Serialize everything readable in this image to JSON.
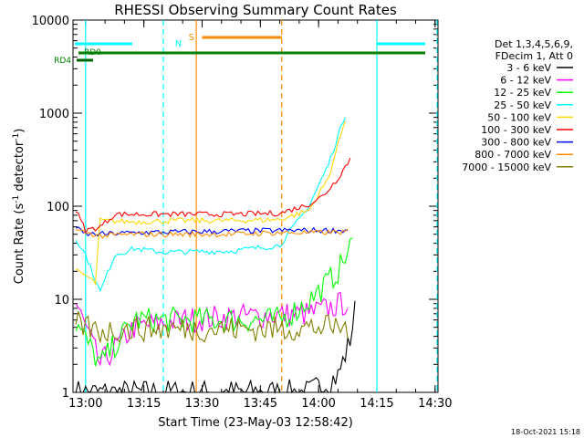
{
  "chart_data": {
    "type": "line",
    "title": "RHESSI Observing Summary Count Rates",
    "xlabel": "Start Time (23-May-03 12:58:42)",
    "ylabel_main": "Count Rate (s",
    "ylabel_sup1": "-1",
    "ylabel_mid": " detector",
    "ylabel_sup2": "-1",
    "ylabel_end": ")",
    "ylog": true,
    "ylim": [
      1,
      10000
    ],
    "xlim_minutes": [
      -1.3,
      36.3
    ],
    "x_ticks": [
      {
        "label": "13:00",
        "m": 0
      },
      {
        "label": "13:15",
        "m": 15
      },
      {
        "label": "13:30",
        "m": 30
      },
      {
        "label": "13:45",
        "m": 45
      },
      {
        "label": "14:00",
        "m": 60
      },
      {
        "label": "14:15",
        "m": 75
      },
      {
        "label": "14:30",
        "m": 90
      }
    ],
    "y_ticks": [
      {
        "label": "1",
        "v": 1
      },
      {
        "label": "10",
        "v": 10
      },
      {
        "label": "100",
        "v": 100
      },
      {
        "label": "1000",
        "v": 1000
      },
      {
        "label": "10000",
        "v": 10000
      }
    ],
    "legend_header": [
      "Det 1,3,4,5,6,9,",
      "FDecim 1, Att 0"
    ],
    "series": [
      {
        "name": "3 - 6 keV",
        "color": "#000000",
        "points": [
          [
            -1,
            1
          ],
          [
            23,
            1
          ],
          [
            26,
            1.5
          ],
          [
            27.2,
            3.5
          ],
          [
            27.8,
            8
          ]
        ],
        "points2": [
          [
            52.5,
            1.4
          ],
          [
            57,
            2
          ],
          [
            62,
            1.5
          ],
          [
            68,
            2
          ],
          [
            75,
            2
          ],
          [
            80,
            1.5
          ],
          [
            84,
            1.2
          ],
          [
            90,
            1
          ]
        ]
      },
      {
        "name": "6 - 12 keV",
        "color": "#ff00ff",
        "points": [
          [
            -1,
            9
          ],
          [
            1.5,
            2
          ],
          [
            5,
            5
          ],
          [
            10,
            6
          ],
          [
            15,
            6.5
          ],
          [
            20,
            6.8
          ],
          [
            23,
            7
          ],
          [
            25,
            8
          ],
          [
            26.5,
            9
          ],
          [
            27.2,
            9.5
          ]
        ],
        "points2": [
          [
            52.5,
            7
          ],
          [
            57,
            6.8
          ],
          [
            62,
            6.5
          ],
          [
            68,
            6.5
          ],
          [
            75,
            6.5
          ],
          [
            80,
            6.2
          ],
          [
            84,
            1
          ],
          [
            90,
            1
          ]
        ]
      },
      {
        "name": "12 - 25 keV",
        "color": "#00ff00",
        "points": [
          [
            -1,
            5.5
          ],
          [
            1.5,
            2
          ],
          [
            5,
            6
          ],
          [
            10,
            6
          ],
          [
            15,
            6
          ],
          [
            20,
            6
          ],
          [
            22,
            8
          ],
          [
            24,
            12
          ],
          [
            26,
            20
          ],
          [
            27.5,
            40
          ]
        ],
        "points2": [
          [
            52.5,
            7.5
          ],
          [
            57,
            6.5
          ],
          [
            62,
            6
          ],
          [
            68,
            6
          ],
          [
            75,
            6.5
          ],
          [
            80,
            6
          ],
          [
            84,
            5
          ],
          [
            90,
            5
          ]
        ]
      },
      {
        "name": "25 - 50 keV",
        "color": "#00ffff",
        "points": [
          [
            -1,
            45
          ],
          [
            0,
            30
          ],
          [
            1.5,
            12
          ],
          [
            3,
            30
          ],
          [
            5,
            35
          ],
          [
            8,
            32
          ],
          [
            15,
            33
          ],
          [
            20,
            38
          ],
          [
            23,
            100
          ],
          [
            25,
            280
          ],
          [
            26.8,
            1000
          ]
        ],
        "points2": [
          [
            52.5,
            40
          ],
          [
            54,
            35
          ],
          [
            58,
            33
          ],
          [
            64,
            33
          ],
          [
            70,
            34
          ],
          [
            76,
            35
          ],
          [
            80,
            35
          ],
          [
            84,
            33
          ],
          [
            90,
            33
          ]
        ]
      },
      {
        "name": "50 - 100 keV",
        "color": "#ffd700",
        "points": [
          [
            -1,
            20
          ],
          [
            0,
            18
          ],
          [
            1,
            15
          ],
          [
            1.5,
            70
          ],
          [
            5,
            68
          ],
          [
            10,
            70
          ],
          [
            15,
            70
          ],
          [
            20,
            72
          ],
          [
            23,
            90
          ],
          [
            25,
            200
          ],
          [
            26.8,
            900
          ]
        ],
        "points2": [
          [
            52.5,
            65
          ],
          [
            57,
            62
          ],
          [
            64,
            60
          ],
          [
            70,
            63
          ],
          [
            76,
            65
          ],
          [
            80,
            70
          ],
          [
            84,
            68
          ],
          [
            90,
            65
          ]
        ]
      },
      {
        "name": "100 - 300 keV",
        "color": "#ff0000",
        "points": [
          [
            -1,
            90
          ],
          [
            0,
            55
          ],
          [
            1.5,
            60
          ],
          [
            3,
            82
          ],
          [
            5,
            82
          ],
          [
            10,
            82
          ],
          [
            15,
            82
          ],
          [
            20,
            84
          ],
          [
            23,
            105
          ],
          [
            24.5,
            130
          ],
          [
            26,
            200
          ],
          [
            27.3,
            330
          ]
        ],
        "points2": [
          [
            52.5,
            115
          ],
          [
            54,
            95
          ],
          [
            58,
            88
          ],
          [
            64,
            86
          ],
          [
            70,
            90
          ],
          [
            76,
            100
          ],
          [
            80,
            103
          ],
          [
            84,
            88
          ],
          [
            90,
            80
          ]
        ]
      },
      {
        "name": "300 - 800 keV",
        "color": "#0000ff",
        "points": [
          [
            -1,
            58
          ],
          [
            0,
            50
          ],
          [
            1.5,
            50
          ],
          [
            5,
            52
          ],
          [
            10,
            53
          ],
          [
            15,
            54
          ],
          [
            20,
            55
          ],
          [
            24,
            55
          ],
          [
            27,
            55
          ]
        ],
        "points2": [
          [
            52.5,
            75
          ],
          [
            56,
            68
          ],
          [
            60,
            62
          ],
          [
            64,
            62
          ],
          [
            70,
            68
          ],
          [
            76,
            72
          ],
          [
            80,
            72
          ],
          [
            84,
            58
          ],
          [
            90,
            50
          ]
        ]
      },
      {
        "name": "800 - 7000 keV",
        "color": "#ff8c00",
        "points": [
          [
            -1,
            55
          ],
          [
            0,
            52
          ],
          [
            1.5,
            48
          ],
          [
            5,
            50
          ],
          [
            10,
            50
          ],
          [
            15,
            50
          ],
          [
            20,
            52
          ],
          [
            24,
            52
          ],
          [
            27,
            53
          ]
        ],
        "points2": [
          [
            52.5,
            62
          ],
          [
            56,
            55
          ],
          [
            60,
            52
          ],
          [
            64,
            50
          ],
          [
            70,
            52
          ],
          [
            76,
            55
          ],
          [
            80,
            58
          ],
          [
            84,
            55
          ],
          [
            90,
            52
          ]
        ]
      },
      {
        "name": "7000 - 15000 keV",
        "color": "#808000",
        "points": [
          [
            -1,
            5.5
          ],
          [
            1.5,
            4.5
          ],
          [
            5,
            4.8
          ],
          [
            10,
            4.8
          ],
          [
            15,
            4.8
          ],
          [
            20,
            4.8
          ],
          [
            24,
            5
          ],
          [
            27,
            5
          ]
        ],
        "points2": [
          [
            52.5,
            4.5
          ],
          [
            57,
            4.3
          ],
          [
            62,
            4.5
          ],
          [
            68,
            4.5
          ],
          [
            75,
            4.5
          ],
          [
            80,
            4.8
          ],
          [
            84,
            5
          ],
          [
            90,
            5
          ]
        ]
      }
    ],
    "annotations": {
      "N": "N",
      "S": "S",
      "RD0": "RD0",
      "RD4": "RD4"
    },
    "timestamp": "18-Oct-2021 15:18"
  }
}
